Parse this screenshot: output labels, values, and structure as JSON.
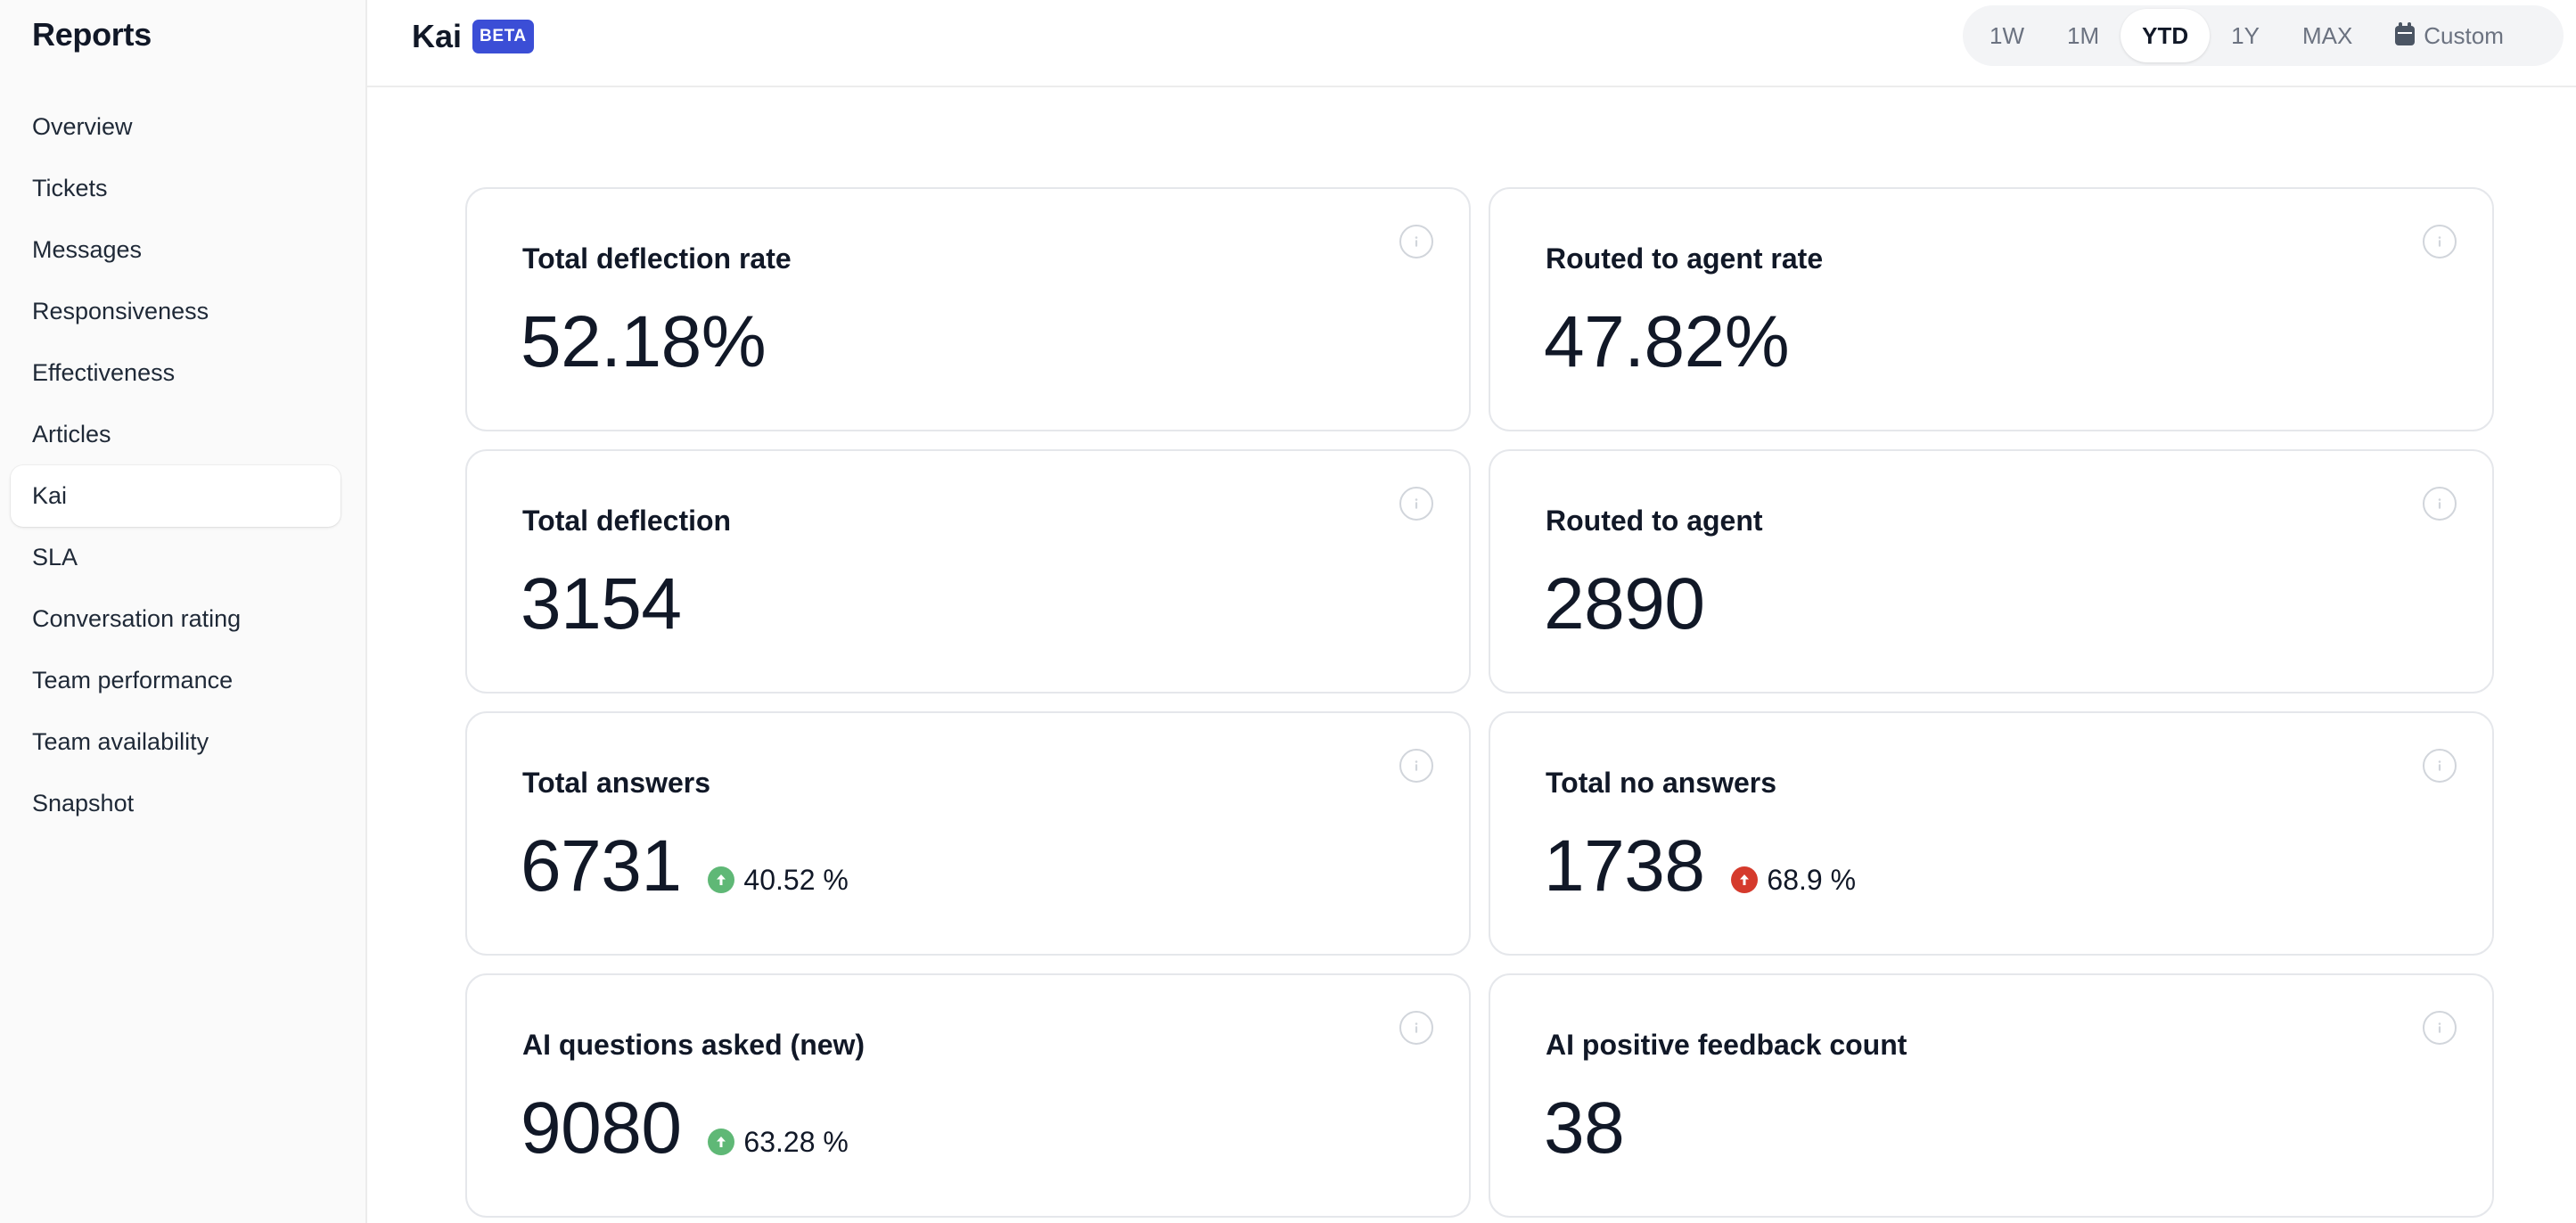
{
  "sidebar": {
    "title": "Reports",
    "items": [
      {
        "label": "Overview"
      },
      {
        "label": "Tickets"
      },
      {
        "label": "Messages"
      },
      {
        "label": "Responsiveness"
      },
      {
        "label": "Effectiveness"
      },
      {
        "label": "Articles"
      },
      {
        "label": "Kai",
        "active": true
      },
      {
        "label": "SLA"
      },
      {
        "label": "Conversation rating"
      },
      {
        "label": "Team performance"
      },
      {
        "label": "Team availability"
      },
      {
        "label": "Snapshot"
      }
    ]
  },
  "header": {
    "title": "Kai",
    "badge": "BETA",
    "badge_color": "#3b4ed6",
    "ranges": [
      {
        "label": "1W"
      },
      {
        "label": "1M"
      },
      {
        "label": "YTD",
        "active": true
      },
      {
        "label": "1Y"
      },
      {
        "label": "MAX"
      },
      {
        "label": "Custom",
        "icon": "calendar-icon"
      }
    ]
  },
  "metrics": [
    {
      "title": "Total deflection rate",
      "value": "52.18%"
    },
    {
      "title": "Routed to agent rate",
      "value": "47.82%"
    },
    {
      "title": "Total deflection",
      "value": "3154"
    },
    {
      "title": "Routed to agent",
      "value": "2890"
    },
    {
      "title": "Total answers",
      "value": "6731",
      "delta": {
        "text": "40.52 %",
        "direction": "up",
        "color": "#5fb876",
        "icon": "arrow-up-circle-icon"
      }
    },
    {
      "title": "Total no answers",
      "value": "1738",
      "delta": {
        "text": "68.9 %",
        "direction": "up",
        "color": "#d53a2c",
        "icon": "arrow-up-circle-icon"
      }
    },
    {
      "title": "AI questions asked (new)",
      "value": "9080",
      "delta": {
        "text": "63.28 %",
        "direction": "up",
        "color": "#5fb876",
        "icon": "arrow-up-circle-icon"
      }
    },
    {
      "title": "AI positive feedback count",
      "value": "38"
    }
  ]
}
